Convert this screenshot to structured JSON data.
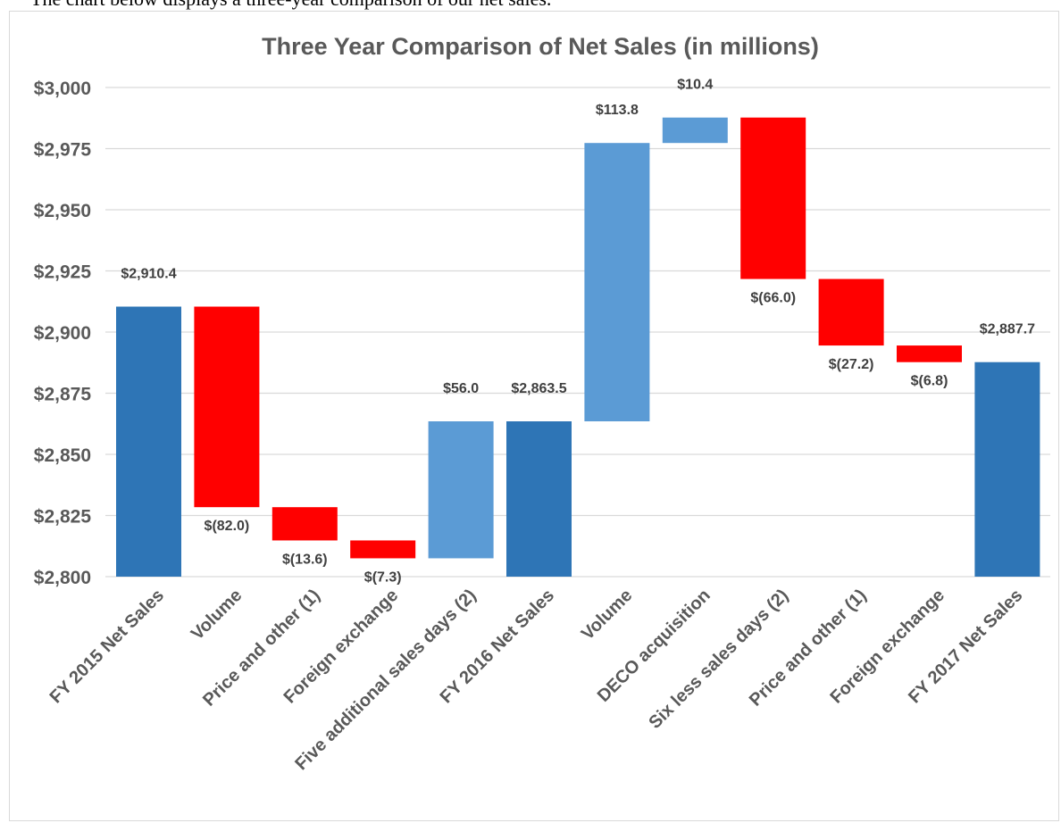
{
  "intro_text": "The chart below displays a three-year comparison of our net sales.",
  "chart_data": {
    "type": "bar",
    "subtype": "waterfall",
    "title": "Three Year Comparison of Net Sales (in millions)",
    "ylim": [
      2800,
      3000
    ],
    "ytick_values": [
      2800,
      2825,
      2850,
      2875,
      2900,
      2925,
      2950,
      2975,
      3000
    ],
    "ytick_labels": [
      "$2,800",
      "$2,825",
      "$2,850",
      "$2,875",
      "$2,900",
      "$2,925",
      "$2,950",
      "$2,975",
      "$3,000"
    ],
    "grid": true,
    "categories": [
      "FY 2015 Net Sales",
      "Volume",
      "Price and other (1)",
      "Foreign exchange",
      "Five additional sales days (2)",
      "FY 2016 Net Sales",
      "Volume",
      "DECO acquisition",
      "Six less sales days (2)",
      "Price and other (1)",
      "Foreign exchange",
      "FY 2017 Net Sales"
    ],
    "bars": [
      {
        "kind": "total",
        "start": 2800,
        "end": 2910.4,
        "label": "$2,910.4"
      },
      {
        "kind": "decrease",
        "start": 2910.4,
        "end": 2828.4,
        "label": "$(82.0)"
      },
      {
        "kind": "decrease",
        "start": 2828.4,
        "end": 2814.8,
        "label": "$(13.6)"
      },
      {
        "kind": "decrease",
        "start": 2814.8,
        "end": 2807.5,
        "label": "$(7.3)"
      },
      {
        "kind": "increase",
        "start": 2807.5,
        "end": 2863.5,
        "label": "$56.0"
      },
      {
        "kind": "total",
        "start": 2800,
        "end": 2863.5,
        "label": "$2,863.5"
      },
      {
        "kind": "increase",
        "start": 2863.5,
        "end": 2977.3,
        "label": "$113.8"
      },
      {
        "kind": "increase",
        "start": 2977.3,
        "end": 2987.7,
        "label": "$10.4"
      },
      {
        "kind": "decrease",
        "start": 2987.7,
        "end": 2921.7,
        "label": "$(66.0)"
      },
      {
        "kind": "decrease",
        "start": 2921.7,
        "end": 2894.5,
        "label": "$(27.2)"
      },
      {
        "kind": "decrease",
        "start": 2894.5,
        "end": 2887.7,
        "label": "$(6.8)"
      },
      {
        "kind": "total",
        "start": 2800,
        "end": 2887.7,
        "label": "$2,887.7"
      }
    ],
    "colors": {
      "total": "#2e75b6",
      "increase": "#5b9bd5",
      "decrease": "#ff0000",
      "grid": "#d9d9d9"
    }
  }
}
